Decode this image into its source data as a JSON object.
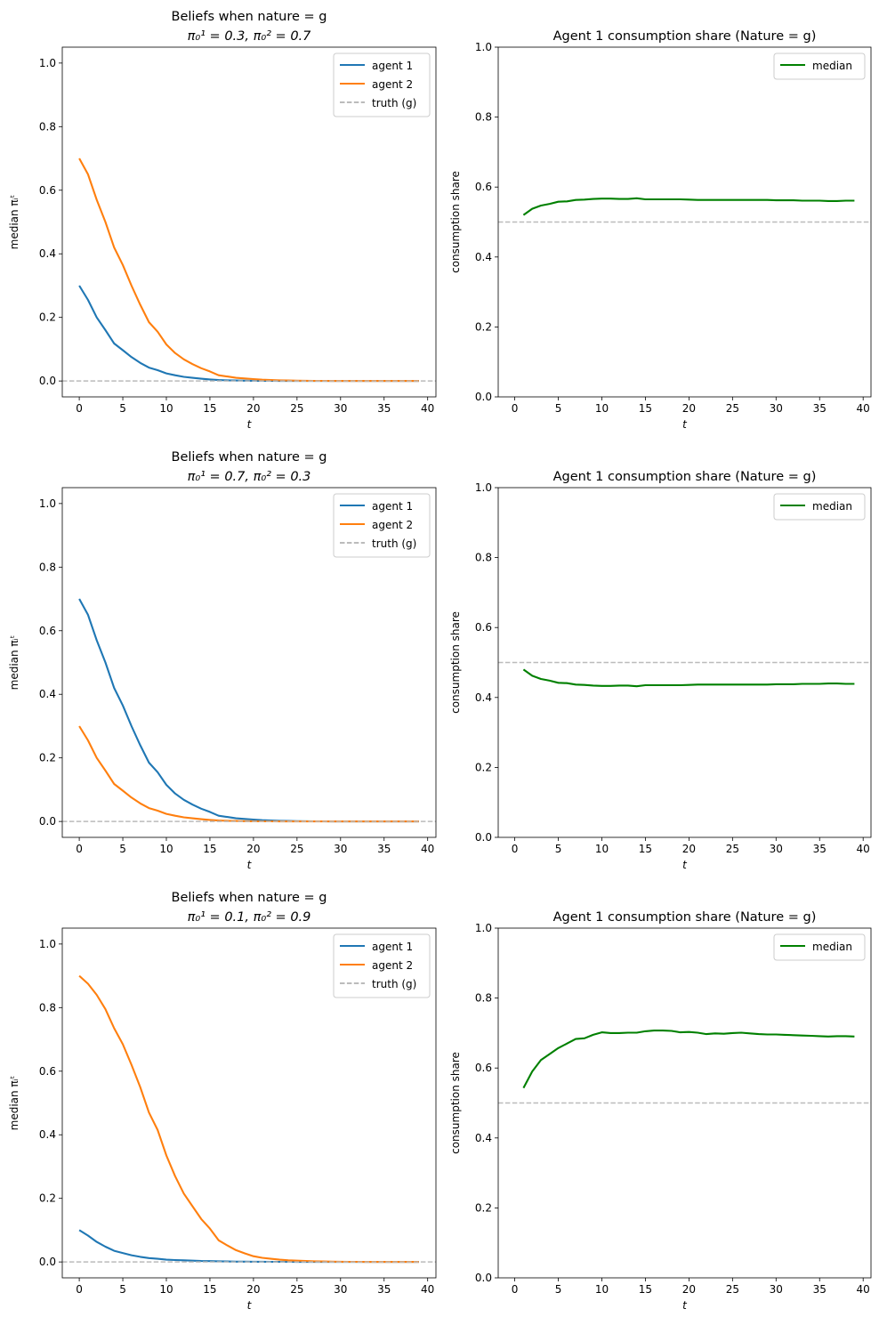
{
  "chart_data": [
    {
      "type": "line",
      "title": "Beliefs when nature = g",
      "subtitle": "π₀¹ = 0.3, π₀² = 0.7",
      "xlabel": "t",
      "ylabel": "median πᵢᵗ",
      "xlim": [
        -1.95,
        40.95
      ],
      "ylim": [
        -0.05,
        1.05
      ],
      "xticks": [
        0,
        5,
        10,
        15,
        20,
        25,
        30,
        35,
        40
      ],
      "yticks": [
        0.0,
        0.2,
        0.4,
        0.6,
        0.8,
        1.0
      ],
      "legend": "top-right",
      "series": [
        {
          "name": "agent 1",
          "color": "#1f77b4",
          "style": "solid",
          "x_start": 0,
          "values": [
            0.3,
            0.255,
            0.2,
            0.16,
            0.118,
            0.097,
            0.075,
            0.057,
            0.042,
            0.034,
            0.024,
            0.018,
            0.013,
            0.01,
            0.007,
            0.005,
            0.003,
            0.002,
            0.0015,
            0.001,
            0.0008,
            0.0005,
            0.0003,
            0.0002,
            0.0001,
            0,
            0,
            0,
            0,
            0,
            0,
            0,
            0,
            0,
            0,
            0,
            0,
            0,
            0,
            0
          ]
        },
        {
          "name": "agent 2",
          "color": "#ff7f0e",
          "style": "solid",
          "x_start": 0,
          "values": [
            0.7,
            0.65,
            0.57,
            0.5,
            0.42,
            0.365,
            0.3,
            0.24,
            0.185,
            0.155,
            0.115,
            0.088,
            0.068,
            0.053,
            0.04,
            0.03,
            0.018,
            0.014,
            0.01,
            0.008,
            0.006,
            0.004,
            0.003,
            0.002,
            0.0015,
            0.001,
            0.0008,
            0.0005,
            0.0003,
            0.0002,
            0.0001,
            0,
            0,
            0,
            0,
            0,
            0,
            0,
            0,
            0
          ]
        },
        {
          "name": "truth (g)",
          "color": "#bbbbbb",
          "style": "dashed",
          "hline": 0.0
        }
      ]
    },
    {
      "type": "line",
      "title": "Agent 1 consumption share (Nature = g)",
      "xlabel": "t",
      "ylabel": "consumption share",
      "xlim": [
        -1.9,
        40.9
      ],
      "ylim": [
        0.0,
        1.0
      ],
      "xticks": [
        0,
        5,
        10,
        15,
        20,
        25,
        30,
        35,
        40
      ],
      "yticks": [
        0.0,
        0.2,
        0.4,
        0.6,
        0.8,
        1.0
      ],
      "legend": "top-right",
      "series": [
        {
          "name": "median",
          "color": "#008000",
          "style": "solid",
          "x_start": 1,
          "values": [
            0.52,
            0.538,
            0.547,
            0.552,
            0.558,
            0.559,
            0.563,
            0.564,
            0.566,
            0.567,
            0.567,
            0.566,
            0.566,
            0.568,
            0.565,
            0.565,
            0.565,
            0.565,
            0.565,
            0.564,
            0.563,
            0.563,
            0.563,
            0.563,
            0.563,
            0.563,
            0.563,
            0.563,
            0.563,
            0.562,
            0.562,
            0.562,
            0.561,
            0.561,
            0.561,
            0.56,
            0.56,
            0.561,
            0.561
          ]
        },
        {
          "color": "#bbbbbb",
          "style": "dashed",
          "hline": 0.5
        }
      ]
    },
    {
      "type": "line",
      "title": "Beliefs when nature = g",
      "subtitle": "π₀¹ = 0.7, π₀² = 0.3",
      "xlabel": "t",
      "ylabel": "median πᵢᵗ",
      "xlim": [
        -1.95,
        40.95
      ],
      "ylim": [
        -0.05,
        1.05
      ],
      "xticks": [
        0,
        5,
        10,
        15,
        20,
        25,
        30,
        35,
        40
      ],
      "yticks": [
        0.0,
        0.2,
        0.4,
        0.6,
        0.8,
        1.0
      ],
      "legend": "top-right",
      "series": [
        {
          "name": "agent 1",
          "color": "#1f77b4",
          "style": "solid",
          "x_start": 0,
          "values": [
            0.7,
            0.65,
            0.57,
            0.5,
            0.42,
            0.365,
            0.3,
            0.24,
            0.185,
            0.155,
            0.115,
            0.088,
            0.068,
            0.053,
            0.04,
            0.03,
            0.018,
            0.014,
            0.01,
            0.008,
            0.006,
            0.004,
            0.003,
            0.002,
            0.0015,
            0.001,
            0.0008,
            0.0005,
            0.0003,
            0.0002,
            0.0001,
            0,
            0,
            0,
            0,
            0,
            0,
            0,
            0,
            0
          ]
        },
        {
          "name": "agent 2",
          "color": "#ff7f0e",
          "style": "solid",
          "x_start": 0,
          "values": [
            0.3,
            0.255,
            0.2,
            0.16,
            0.118,
            0.097,
            0.075,
            0.057,
            0.042,
            0.034,
            0.024,
            0.018,
            0.013,
            0.01,
            0.007,
            0.005,
            0.003,
            0.002,
            0.0015,
            0.001,
            0.0008,
            0.0005,
            0.0003,
            0.0002,
            0.0001,
            0,
            0,
            0,
            0,
            0,
            0,
            0,
            0,
            0,
            0,
            0,
            0,
            0,
            0,
            0
          ]
        },
        {
          "name": "truth (g)",
          "color": "#bbbbbb",
          "style": "dashed",
          "hline": 0.0
        }
      ]
    },
    {
      "type": "line",
      "title": "Agent 1 consumption share (Nature = g)",
      "xlabel": "t",
      "ylabel": "consumption share",
      "xlim": [
        -1.9,
        40.9
      ],
      "ylim": [
        0.0,
        1.0
      ],
      "xticks": [
        0,
        5,
        10,
        15,
        20,
        25,
        30,
        35,
        40
      ],
      "yticks": [
        0.0,
        0.2,
        0.4,
        0.6,
        0.8,
        1.0
      ],
      "legend": "top-right",
      "series": [
        {
          "name": "median",
          "color": "#008000",
          "style": "solid",
          "x_start": 1,
          "values": [
            0.48,
            0.462,
            0.453,
            0.448,
            0.442,
            0.441,
            0.437,
            0.436,
            0.434,
            0.433,
            0.433,
            0.434,
            0.434,
            0.432,
            0.435,
            0.435,
            0.435,
            0.435,
            0.435,
            0.436,
            0.437,
            0.437,
            0.437,
            0.437,
            0.437,
            0.437,
            0.437,
            0.437,
            0.437,
            0.438,
            0.438,
            0.438,
            0.439,
            0.439,
            0.439,
            0.44,
            0.44,
            0.439,
            0.439
          ]
        },
        {
          "color": "#bbbbbb",
          "style": "dashed",
          "hline": 0.5
        }
      ]
    },
    {
      "type": "line",
      "title": "Beliefs when nature = g",
      "subtitle": "π₀¹ = 0.1, π₀² = 0.9",
      "xlabel": "t",
      "ylabel": "median πᵢᵗ",
      "xlim": [
        -1.95,
        40.95
      ],
      "ylim": [
        -0.05,
        1.05
      ],
      "xticks": [
        0,
        5,
        10,
        15,
        20,
        25,
        30,
        35,
        40
      ],
      "yticks": [
        0.0,
        0.2,
        0.4,
        0.6,
        0.8,
        1.0
      ],
      "legend": "top-right",
      "series": [
        {
          "name": "agent 1",
          "color": "#1f77b4",
          "style": "solid",
          "x_start": 0,
          "values": [
            0.1,
            0.083,
            0.063,
            0.048,
            0.035,
            0.028,
            0.021,
            0.016,
            0.012,
            0.01,
            0.007,
            0.006,
            0.005,
            0.004,
            0.003,
            0.0025,
            0.002,
            0.0015,
            0.001,
            0.001,
            0.0008,
            0.0006,
            0.0005,
            0.0004,
            0.0003,
            0.0002,
            0.0001,
            0,
            0,
            0,
            0,
            0,
            0,
            0,
            0,
            0,
            0,
            0,
            0,
            0
          ]
        },
        {
          "name": "agent 2",
          "color": "#ff7f0e",
          "style": "solid",
          "x_start": 0,
          "values": [
            0.9,
            0.875,
            0.84,
            0.795,
            0.735,
            0.685,
            0.62,
            0.55,
            0.47,
            0.415,
            0.335,
            0.27,
            0.215,
            0.175,
            0.135,
            0.105,
            0.068,
            0.052,
            0.037,
            0.027,
            0.018,
            0.013,
            0.01,
            0.007,
            0.005,
            0.004,
            0.003,
            0.002,
            0.0015,
            0.001,
            0.0008,
            0.0005,
            0.0003,
            0.0002,
            0.0001,
            0,
            0,
            0,
            0,
            0
          ]
        },
        {
          "name": "truth (g)",
          "color": "#bbbbbb",
          "style": "dashed",
          "hline": 0.0
        }
      ]
    },
    {
      "type": "line",
      "title": "Agent 1 consumption share (Nature = g)",
      "xlabel": "t",
      "ylabel": "consumption share",
      "xlim": [
        -1.9,
        40.9
      ],
      "ylim": [
        0.0,
        1.0
      ],
      "xticks": [
        0,
        5,
        10,
        15,
        20,
        25,
        30,
        35,
        40
      ],
      "yticks": [
        0.0,
        0.2,
        0.4,
        0.6,
        0.8,
        1.0
      ],
      "legend": "top-right",
      "series": [
        {
          "name": "median",
          "color": "#008000",
          "style": "solid",
          "x_start": 1,
          "values": [
            0.543,
            0.59,
            0.623,
            0.64,
            0.657,
            0.67,
            0.683,
            0.685,
            0.695,
            0.702,
            0.7,
            0.7,
            0.701,
            0.701,
            0.705,
            0.707,
            0.707,
            0.706,
            0.702,
            0.703,
            0.701,
            0.697,
            0.699,
            0.698,
            0.7,
            0.701,
            0.699,
            0.697,
            0.696,
            0.696,
            0.695,
            0.694,
            0.693,
            0.692,
            0.691,
            0.69,
            0.691,
            0.691,
            0.69
          ]
        },
        {
          "color": "#bbbbbb",
          "style": "dashed",
          "hline": 0.5
        }
      ]
    }
  ]
}
